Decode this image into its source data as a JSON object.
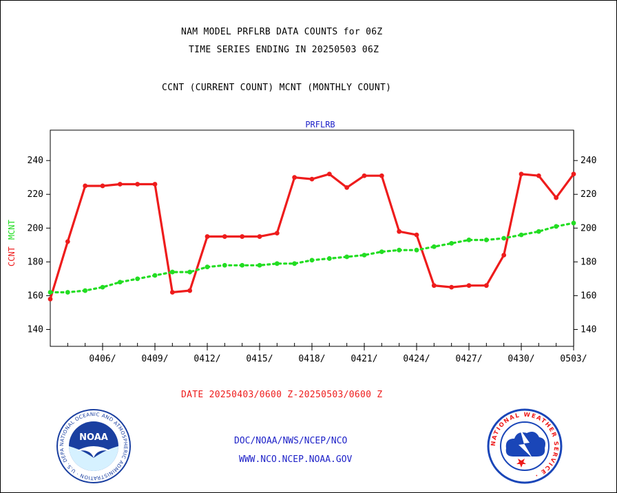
{
  "header": {
    "title_line1": "NAM MODEL PRFLRB DATA COUNTS for 06Z",
    "title_line2": "TIME SERIES ENDING IN 20250503 06Z",
    "subtitle": "CCNT (CURRENT COUNT) MCNT (MONTHLY COUNT)"
  },
  "footer": {
    "date_range": "DATE 20250403/0600 Z-20250503/0600 Z",
    "org_path": "DOC/NOAA/NWS/NCEP/NCO",
    "website": "WWW.NCO.NCEP.NOAA.GOV",
    "noaa_logo_text": "NOAA",
    "noaa_seal_ring_text": "NATIONAL OCEANIC AND ATMOSPHERIC ADMINISTRATION · U.S. DEPARTMENT OF COMMERCE ·",
    "nws_seal_ring_text": "NATIONAL WEATHER SERVICE ·"
  },
  "colors": {
    "ccnt": "#ee1c1c",
    "mcnt": "#22dd22",
    "panel_title": "#1e22c8",
    "date_text": "#ee1c1c",
    "link": "#1e22c8",
    "noaa_blue": "#1a3fa0",
    "nws_blue": "#1a46b8"
  },
  "chart_data": {
    "type": "line",
    "title": "PRFLRB",
    "ylabel_series": [
      {
        "text": "CCNT",
        "color": "#ee1c1c"
      },
      {
        "text": "MCNT",
        "color": "#22dd22"
      }
    ],
    "xlabel": "DATE 20250403/0600 Z-20250503/0600 Z",
    "x_ticks": [
      "0406/",
      "0409/",
      "0412/",
      "0415/",
      "0418/",
      "0421/",
      "0424/",
      "0427/",
      "0430/",
      "0503/"
    ],
    "x_tick_days": [
      3,
      6,
      9,
      12,
      15,
      18,
      21,
      24,
      27,
      30
    ],
    "xlim": [
      0,
      30
    ],
    "ylim": [
      130,
      258
    ],
    "y_ticks": [
      140,
      160,
      180,
      200,
      220,
      240
    ],
    "grid": true,
    "series": [
      {
        "name": "CCNT",
        "color": "#ee1c1c",
        "style": "solid",
        "x": [
          0,
          1,
          2,
          3,
          4,
          5,
          6,
          7,
          8,
          9,
          10,
          11,
          12,
          13,
          14,
          15,
          16,
          17,
          18,
          19,
          20,
          21,
          22,
          23,
          24,
          25,
          26,
          27,
          28,
          29,
          30
        ],
        "values": [
          158,
          192,
          225,
          225,
          226,
          226,
          226,
          162,
          163,
          195,
          195,
          195,
          195,
          197,
          230,
          229,
          232,
          224,
          231,
          231,
          198,
          196,
          166,
          165,
          166,
          166,
          184,
          232,
          231,
          218,
          232
        ]
      },
      {
        "name": "MCNT",
        "color": "#22dd22",
        "style": "dotted",
        "x": [
          0,
          1,
          2,
          3,
          4,
          5,
          6,
          7,
          8,
          9,
          10,
          11,
          12,
          13,
          14,
          15,
          16,
          17,
          18,
          19,
          20,
          21,
          22,
          23,
          24,
          25,
          26,
          27,
          28,
          29,
          30
        ],
        "values": [
          162,
          162,
          163,
          165,
          168,
          170,
          172,
          174,
          174,
          177,
          178,
          178,
          178,
          179,
          179,
          181,
          182,
          183,
          184,
          186,
          187,
          187,
          189,
          191,
          193,
          193,
          194,
          196,
          198,
          201,
          203
        ]
      }
    ]
  }
}
